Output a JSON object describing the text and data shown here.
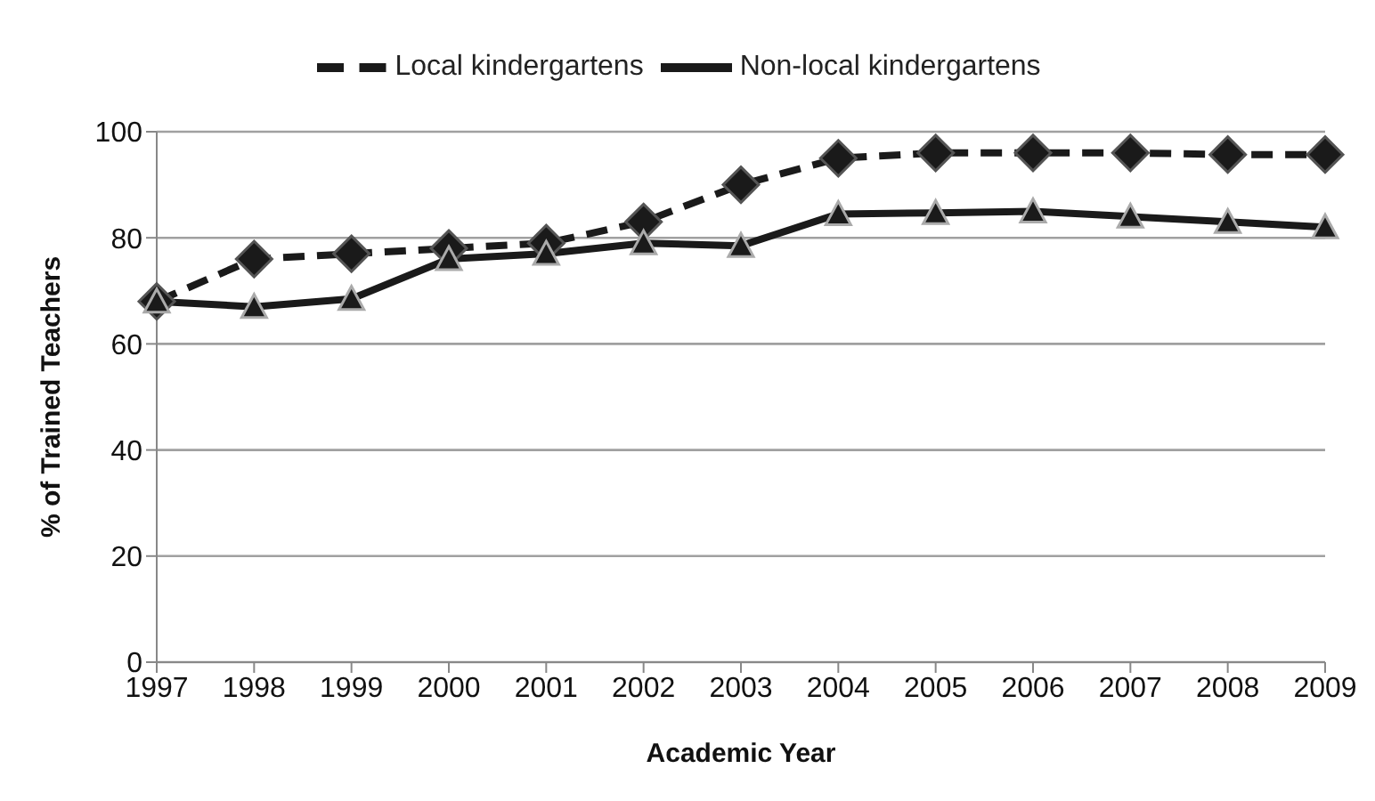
{
  "chart_data": {
    "type": "line",
    "xlabel": "Academic Year",
    "ylabel": "% of Trained Teachers",
    "categories": [
      "1997",
      "1998",
      "1999",
      "2000",
      "2001",
      "2002",
      "2003",
      "2004",
      "2005",
      "2006",
      "2007",
      "2008",
      "2009"
    ],
    "series": [
      {
        "name": "Local kindergartens",
        "color": "#1a1a1a",
        "marker": "diamond",
        "line_style": "dashed",
        "values": [
          68,
          76,
          77,
          78,
          79,
          83,
          90,
          95,
          96,
          96,
          96,
          95.7,
          95.7
        ]
      },
      {
        "name": "Non-local kindergartens",
        "color": "#1a1a1a",
        "marker": "triangle",
        "line_style": "solid",
        "values": [
          68,
          67,
          68.5,
          76,
          77,
          79,
          78.5,
          84.5,
          84.7,
          85,
          84,
          83,
          82
        ]
      }
    ],
    "ylim": [
      0,
      100
    ],
    "yticks": [
      0,
      20,
      40,
      60,
      80,
      100
    ],
    "grid": "y",
    "legend": "top"
  }
}
